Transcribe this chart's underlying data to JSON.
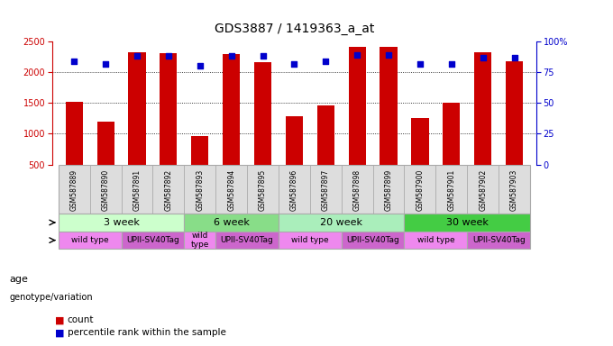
{
  "title": "GDS3887 / 1419363_a_at",
  "samples": [
    "GSM587889",
    "GSM587890",
    "GSM587891",
    "GSM587892",
    "GSM587893",
    "GSM587894",
    "GSM587895",
    "GSM587896",
    "GSM587897",
    "GSM587898",
    "GSM587899",
    "GSM587900",
    "GSM587901",
    "GSM587902",
    "GSM587903"
  ],
  "counts": [
    1520,
    1190,
    2330,
    2310,
    960,
    2300,
    2160,
    1280,
    1460,
    2420,
    2410,
    1250,
    1510,
    2320,
    2180
  ],
  "percentiles": [
    84,
    82,
    88,
    88,
    80,
    88,
    88,
    82,
    84,
    89,
    89,
    82,
    82,
    87,
    87
  ],
  "ylim_left": [
    500,
    2500
  ],
  "ylim_right": [
    0,
    100
  ],
  "yticks_left": [
    500,
    1000,
    1500,
    2000,
    2500
  ],
  "yticks_right": [
    0,
    25,
    50,
    75,
    100
  ],
  "bar_color": "#cc0000",
  "dot_color": "#0000cc",
  "age_groups": [
    {
      "label": "3 week",
      "start": 0,
      "end": 4,
      "color": "#ccffcc"
    },
    {
      "label": "6 week",
      "start": 4,
      "end": 7,
      "color": "#88dd88"
    },
    {
      "label": "20 week",
      "start": 7,
      "end": 11,
      "color": "#aaeebb"
    },
    {
      "label": "30 week",
      "start": 11,
      "end": 15,
      "color": "#44cc44"
    }
  ],
  "genotype_groups": [
    {
      "label": "wild type",
      "start": 0,
      "end": 2,
      "color": "#ee88ee"
    },
    {
      "label": "UPII-SV40Tag",
      "start": 2,
      "end": 4,
      "color": "#cc66cc"
    },
    {
      "label": "wild\ntype",
      "start": 4,
      "end": 5,
      "color": "#ee88ee"
    },
    {
      "label": "UPII-SV40Tag",
      "start": 5,
      "end": 7,
      "color": "#cc66cc"
    },
    {
      "label": "wild type",
      "start": 7,
      "end": 9,
      "color": "#ee88ee"
    },
    {
      "label": "UPII-SV40Tag",
      "start": 9,
      "end": 11,
      "color": "#cc66cc"
    },
    {
      "label": "wild type",
      "start": 11,
      "end": 13,
      "color": "#ee88ee"
    },
    {
      "label": "UPII-SV40Tag",
      "start": 13,
      "end": 15,
      "color": "#cc66cc"
    }
  ],
  "legend_items": [
    {
      "label": "count",
      "color": "#cc0000"
    },
    {
      "label": "percentile rank within the sample",
      "color": "#0000cc"
    }
  ],
  "row_labels": [
    "age",
    "genotype/variation"
  ],
  "background_color": "#ffffff",
  "title_fontsize": 10,
  "tick_fontsize": 7,
  "label_fontsize": 7.5
}
